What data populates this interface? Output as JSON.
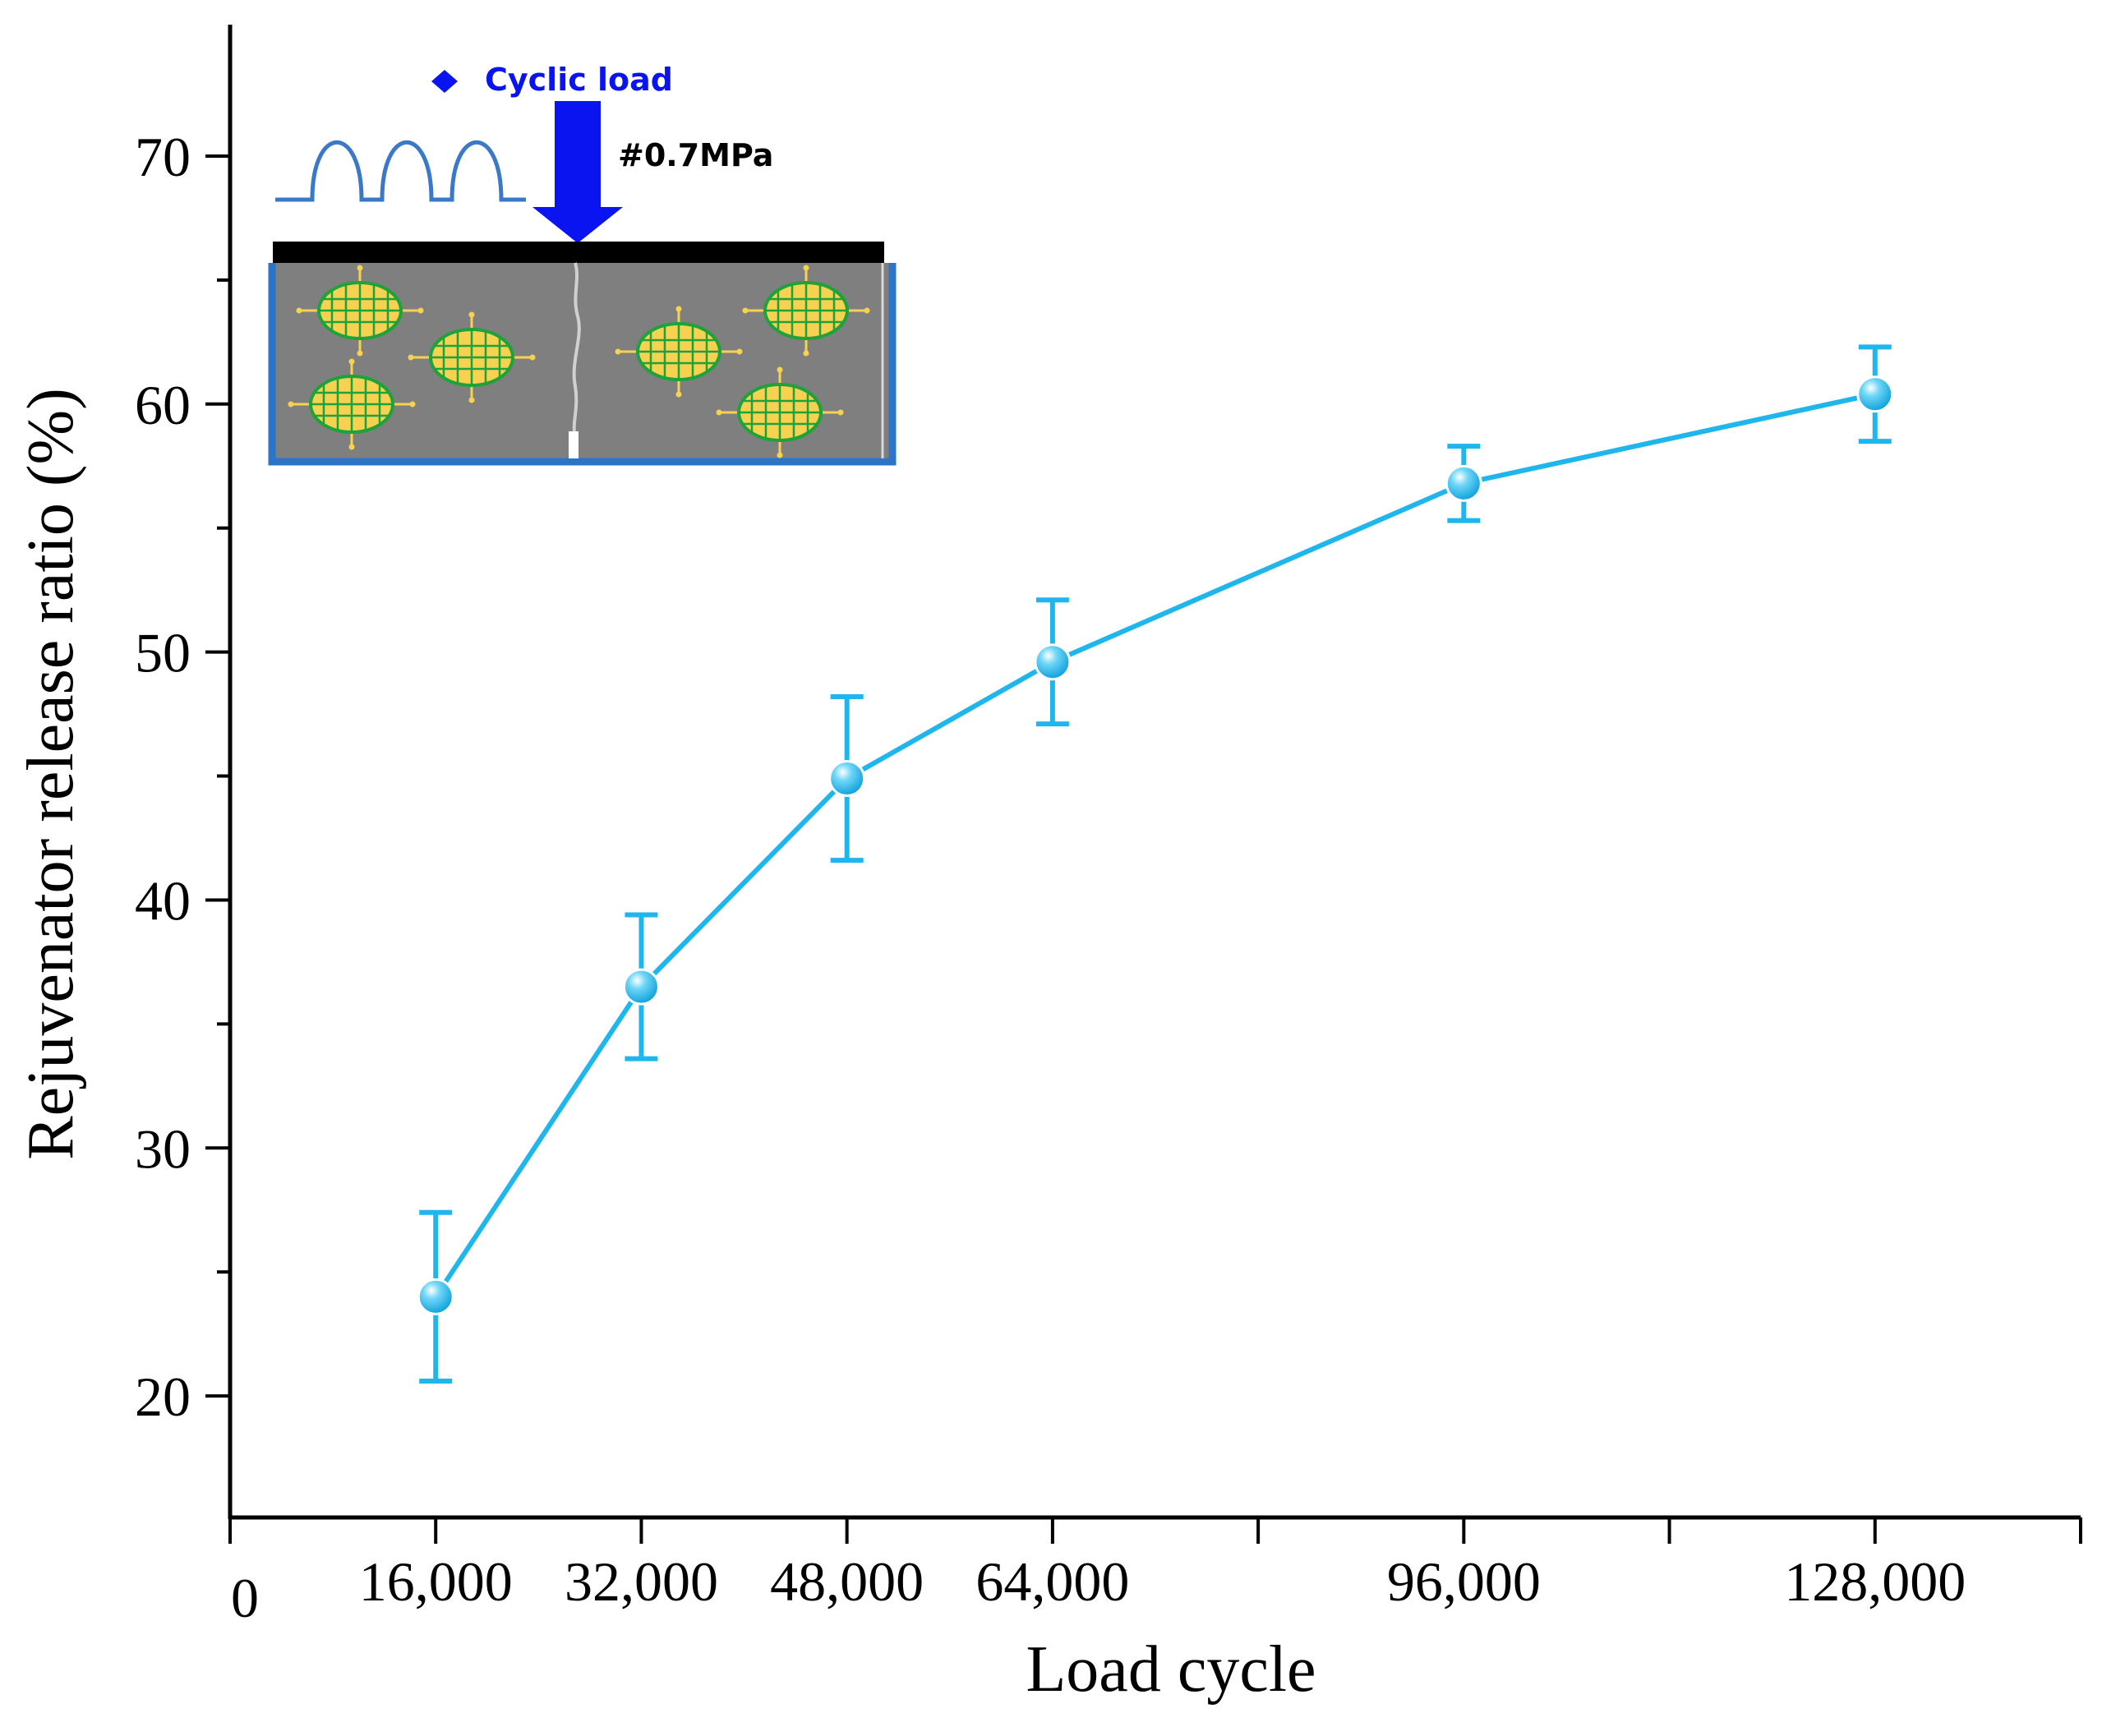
{
  "chart_data": {
    "type": "line",
    "title": "",
    "xlabel": "Load cycle",
    "ylabel": "Rejuvenator release ratio (%)",
    "x": [
      16000,
      32000,
      48000,
      64000,
      96000,
      128000
    ],
    "series": [
      {
        "name": "Rejuvenator release ratio",
        "values": [
          24.0,
          36.5,
          44.9,
          49.6,
          56.8,
          60.4
        ],
        "error_low": [
          20.6,
          33.6,
          41.6,
          47.1,
          55.3,
          58.5
        ],
        "error_high": [
          27.4,
          39.4,
          48.2,
          52.1,
          58.3,
          62.3
        ],
        "color": "#1FB6EE"
      }
    ],
    "x_ticks": [
      0,
      16000,
      32000,
      48000,
      64000,
      96000,
      128000
    ],
    "x_tick_labels": [
      "0",
      "16,000",
      "32,000",
      "48,000",
      "64,000",
      "96,000",
      "128,000"
    ],
    "x_minor_ticks": [
      80000,
      112000,
      144000
    ],
    "xlim": [
      0,
      144000
    ],
    "y_ticks": [
      20,
      30,
      40,
      50,
      60,
      70
    ],
    "y_tick_labels": [
      "20",
      "30",
      "40",
      "50",
      "60",
      "70"
    ],
    "y_minor_ticks": [
      25,
      35,
      45,
      55,
      65
    ],
    "ylim": [
      15.1,
      75.3
    ],
    "grid": false,
    "inset": {
      "legend_label": "Cyclic load",
      "pressure_label": "#0.7MPa",
      "load_color": "#0A14F0",
      "wave_color": "#3A78C8",
      "capsule_fill": "#F7D251",
      "capsule_grid": "#1EA23A",
      "specimen_fill": "#7F7F7F",
      "frame_color": "#2B74C7"
    }
  }
}
